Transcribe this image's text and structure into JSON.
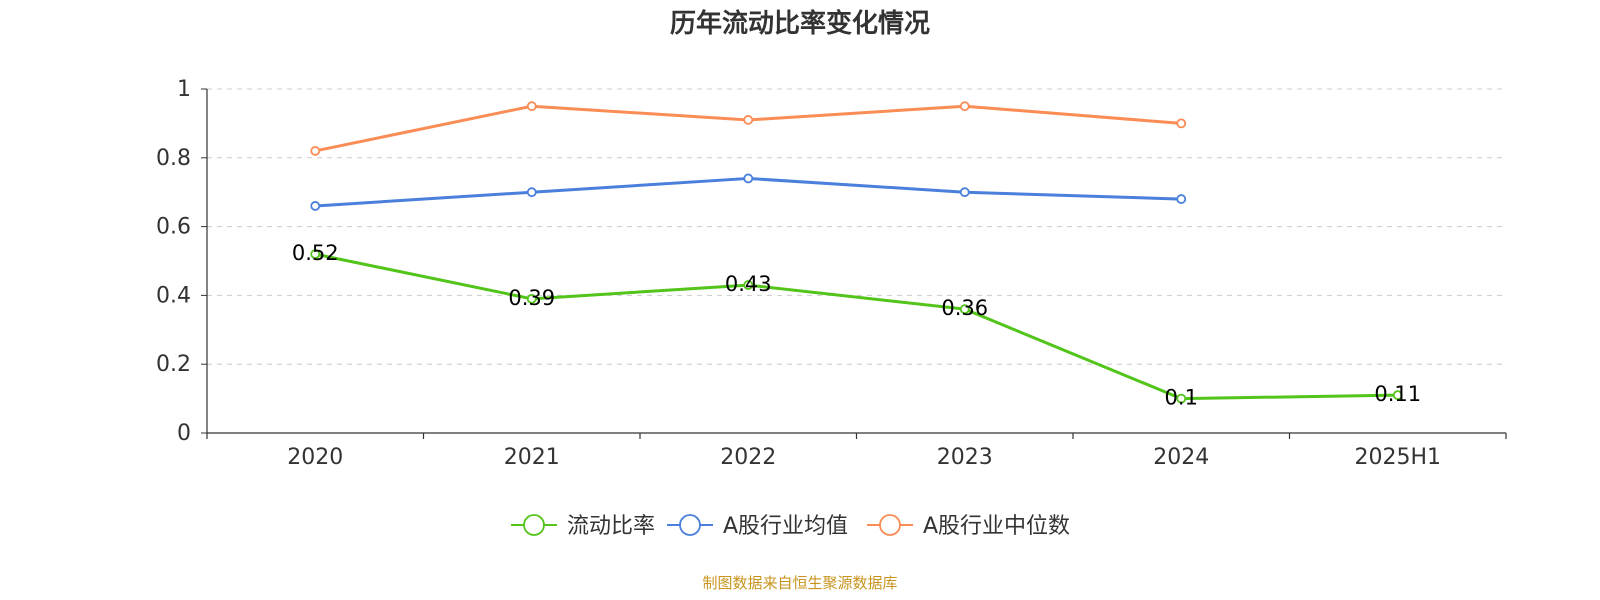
{
  "chart_data": {
    "type": "line",
    "title": "历年流动比率变化情况",
    "categories": [
      "2020",
      "2021",
      "2022",
      "2023",
      "2024",
      "2025H1"
    ],
    "xlabel": "",
    "ylabel": "",
    "ylim": [
      0,
      1
    ],
    "yticks": [
      0,
      0.2,
      0.4,
      0.6,
      0.8,
      1
    ],
    "ytick_labels": [
      "0",
      "0.2",
      "0.4",
      "0.6",
      "0.8",
      "1"
    ],
    "grid": true,
    "legend_position": "bottom-center",
    "series": [
      {
        "name": "流动比率",
        "color": "#52c41a",
        "values": [
          0.52,
          0.39,
          0.43,
          0.36,
          0.1,
          0.11
        ],
        "data_labels": [
          "0.52",
          "0.39",
          "0.43",
          "0.36",
          "0.1",
          "0.11"
        ]
      },
      {
        "name": "A股行业均值",
        "color": "#4a7fdb",
        "values": [
          0.66,
          0.7,
          0.74,
          0.7,
          0.68,
          null
        ]
      },
      {
        "name": "A股行业中位数",
        "color": "#fa8c55",
        "values": [
          0.82,
          0.95,
          0.91,
          0.95,
          0.9,
          null
        ]
      }
    ]
  },
  "source": "制图数据来自恒生聚源数据库"
}
